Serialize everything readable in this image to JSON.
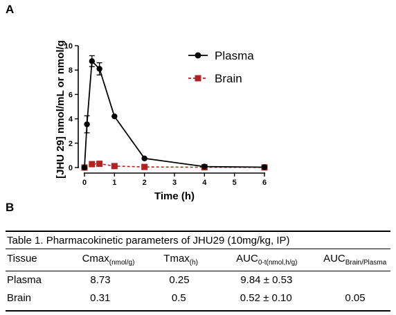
{
  "panels": {
    "a": "A",
    "b": "B"
  },
  "chart_data": {
    "type": "line",
    "xlabel": "Time (h)",
    "ylabel": "[JHU 29] nmol/mL or nmol/g",
    "xlim": [
      0,
      6
    ],
    "ylim": [
      0,
      10
    ],
    "xticks": [
      0,
      1,
      2,
      3,
      4,
      5,
      6
    ],
    "yticks": [
      0,
      2,
      4,
      6,
      8,
      10
    ],
    "grid": false,
    "legend_position": "top-right",
    "series": [
      {
        "name": "Plasma",
        "color": "#000000",
        "marker": "circle",
        "line": "solid",
        "x": [
          0,
          0.083,
          0.25,
          0.5,
          1,
          2,
          4,
          6
        ],
        "y": [
          0,
          3.55,
          8.73,
          8.1,
          4.2,
          0.75,
          0.08,
          0.03
        ],
        "err": [
          0,
          0.7,
          0.45,
          0.5,
          0,
          0,
          0,
          0
        ]
      },
      {
        "name": "Brain",
        "color": "#b22222",
        "marker": "square",
        "line": "dashed",
        "x": [
          0,
          0.25,
          0.5,
          1,
          2,
          4,
          6
        ],
        "y": [
          0,
          0.28,
          0.31,
          0.12,
          0.05,
          0.02,
          0.01
        ],
        "err": [
          0,
          0,
          0,
          0,
          0,
          0,
          0
        ]
      }
    ]
  },
  "table": {
    "caption": "Table 1. Pharmacokinetic parameters of JHU29 (10mg/kg, IP)",
    "headers": [
      {
        "main": "Tissue",
        "sub": ""
      },
      {
        "main": "Cmax",
        "sub": "(nmol/g)"
      },
      {
        "main": "Tmax",
        "sub": "(h)"
      },
      {
        "main": "AUC",
        "sub": "0-t(nmol,h/g)"
      },
      {
        "main": "AUC",
        "sub": "Brain/Plasma"
      }
    ],
    "rows": [
      [
        "Plasma",
        "8.73",
        "0.25",
        "9.84 ± 0.53",
        ""
      ],
      [
        "Brain",
        "0.31",
        "0.5",
        "0.52 ± 0.10",
        "0.05"
      ]
    ]
  }
}
